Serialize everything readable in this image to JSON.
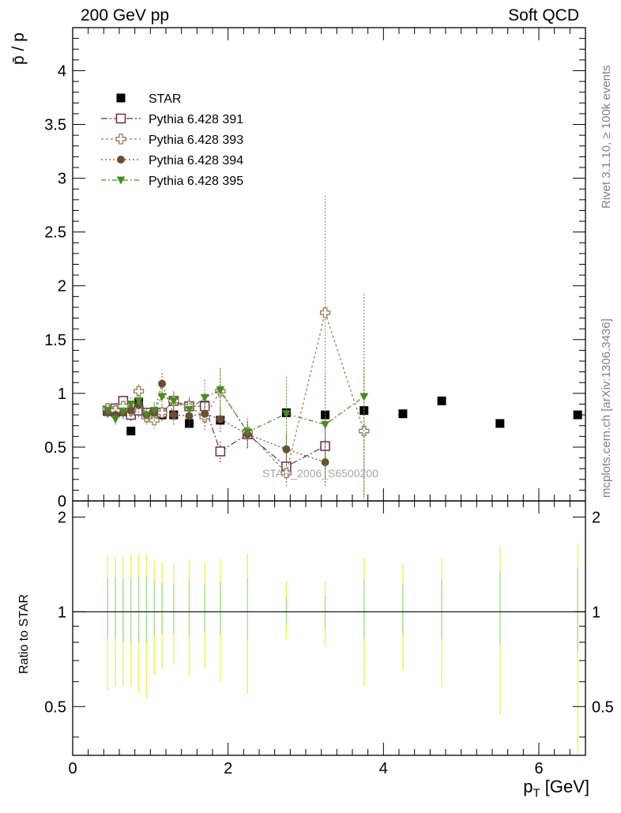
{
  "header": {
    "left_label": "200 GeV pp",
    "right_label": "Soft QCD"
  },
  "side_text": {
    "rivet": "Rivet 3.1.10, ≥ 100k events",
    "mcplots": "mcplots.cern.ch [arXiv:1306.3436]"
  },
  "chart_data": {
    "type": "scatter",
    "analysis_label": "STAR_2006_S6500200",
    "xlabel": "p_T [GeV]",
    "ylabel": "p̄ / p",
    "ratio_ylabel": "Ratio to STAR",
    "xlim": [
      0,
      6.6
    ],
    "ylim": [
      0,
      4.4
    ],
    "ratio_ylim": [
      0.35,
      2.25
    ],
    "x_ticks": [
      "0",
      "2",
      "4",
      "6"
    ],
    "y_ticks": [
      "0",
      "0.5",
      "1",
      "1.5",
      "2",
      "2.5",
      "3",
      "3.5",
      "4"
    ],
    "ratio_ticks": [
      "0.5",
      "1",
      "2"
    ],
    "legend_position": "top-left",
    "colors": {
      "star": "#000000",
      "p391": "#6b2c4d",
      "p393": "#8e7d56",
      "p394": "#6b4d33",
      "p395": "#4a8a22",
      "band_yellow": "#f2f25a",
      "band_green": "#a6e39a",
      "analysis_label": "#a6a6a6",
      "side_text": "#808080"
    },
    "series": [
      {
        "name": "STAR",
        "marker": "filled-square",
        "x": [
          0.45,
          0.55,
          0.65,
          0.75,
          0.85,
          0.95,
          1.05,
          1.15,
          1.3,
          1.5,
          1.7,
          1.9,
          2.25,
          2.75,
          3.25,
          3.75,
          4.25,
          4.75,
          5.5,
          6.5
        ],
        "y": [
          0.83,
          0.82,
          0.83,
          0.65,
          0.92,
          0.8,
          0.8,
          0.8,
          0.8,
          0.72,
          0.89,
          0.75,
          0.62,
          0.82,
          0.8,
          0.84,
          0.81,
          0.93,
          0.72,
          0.8
        ]
      },
      {
        "name": "Pythia 6.428 391",
        "marker": "open-square",
        "x": [
          0.45,
          0.55,
          0.65,
          0.75,
          0.85,
          0.95,
          1.05,
          1.15,
          1.3,
          1.5,
          1.7,
          1.9,
          2.25,
          2.75,
          3.25
        ],
        "y": [
          0.84,
          0.86,
          0.93,
          0.8,
          0.84,
          0.82,
          0.8,
          0.82,
          0.93,
          0.88,
          0.88,
          0.46,
          0.62,
          0.32,
          0.51
        ],
        "err": [
          0.05,
          0.05,
          0.06,
          0.06,
          0.06,
          0.06,
          0.07,
          0.07,
          0.08,
          0.09,
          0.1,
          0.1,
          0.12,
          0.15,
          0.2
        ]
      },
      {
        "name": "Pythia 6.428 393",
        "marker": "open-cross",
        "x": [
          0.45,
          0.55,
          0.65,
          0.75,
          0.85,
          0.95,
          1.05,
          1.15,
          1.3,
          1.5,
          1.7,
          1.9,
          2.25,
          2.75,
          3.25,
          3.75
        ],
        "y": [
          0.86,
          0.84,
          0.88,
          0.84,
          1.02,
          0.78,
          0.75,
          0.82,
          0.93,
          0.88,
          0.78,
          1.02,
          0.64,
          0.26,
          1.75,
          0.65
        ],
        "err": [
          0.05,
          0.05,
          0.06,
          0.06,
          0.07,
          0.07,
          0.08,
          0.08,
          0.09,
          0.1,
          0.12,
          0.22,
          0.15,
          0.12,
          1.1,
          0.6
        ]
      },
      {
        "name": "Pythia 6.428 394",
        "marker": "filled-circle",
        "x": [
          0.45,
          0.55,
          0.65,
          0.75,
          0.85,
          0.95,
          1.05,
          1.15,
          1.3,
          1.5,
          1.7,
          1.9,
          2.25,
          2.75,
          3.25
        ],
        "y": [
          0.82,
          0.8,
          0.82,
          0.84,
          0.89,
          0.8,
          0.82,
          1.09,
          0.8,
          0.79,
          0.81,
          0.76,
          0.62,
          0.48,
          0.36
        ],
        "err": [
          0.05,
          0.05,
          0.06,
          0.06,
          0.07,
          0.07,
          0.08,
          0.12,
          0.09,
          0.1,
          0.12,
          0.12,
          0.13,
          0.15,
          0.22
        ]
      },
      {
        "name": "Pythia 6.428 395",
        "marker": "filled-triangle-down",
        "x": [
          0.45,
          0.55,
          0.65,
          0.75,
          0.85,
          0.95,
          1.05,
          1.15,
          1.3,
          1.5,
          1.7,
          1.9,
          2.25,
          2.75,
          3.25,
          3.75
        ],
        "y": [
          0.84,
          0.76,
          0.83,
          0.9,
          0.93,
          0.8,
          0.84,
          0.97,
          0.93,
          0.85,
          0.96,
          1.03,
          0.64,
          0.81,
          0.71,
          0.97
        ],
        "err": [
          0.05,
          0.05,
          0.06,
          0.07,
          0.07,
          0.07,
          0.08,
          0.08,
          0.09,
          0.1,
          0.17,
          0.22,
          0.12,
          0.35,
          0.5,
          0.97
        ]
      }
    ],
    "ratio_bands": {
      "x": [
        0.45,
        0.55,
        0.65,
        0.75,
        0.85,
        0.95,
        1.05,
        1.15,
        1.3,
        1.5,
        1.7,
        1.9,
        2.25,
        2.75,
        3.25,
        3.75,
        4.25,
        4.75,
        5.5,
        6.5
      ],
      "yellow_lo": [
        0.56,
        0.58,
        0.58,
        0.58,
        0.55,
        0.53,
        0.63,
        0.66,
        0.68,
        0.62,
        0.66,
        0.6,
        0.55,
        0.82,
        0.78,
        0.58,
        0.65,
        0.58,
        0.47,
        0.35
      ],
      "yellow_hi": [
        1.5,
        1.5,
        1.5,
        1.52,
        1.53,
        1.52,
        1.45,
        1.44,
        1.43,
        1.47,
        1.43,
        1.47,
        1.53,
        1.25,
        1.25,
        1.48,
        1.42,
        1.48,
        1.6,
        1.65
      ],
      "green_lo": [
        0.82,
        0.82,
        0.8,
        0.8,
        0.8,
        0.8,
        0.84,
        0.85,
        0.85,
        0.84,
        0.86,
        0.84,
        0.82,
        0.92,
        0.9,
        0.82,
        0.84,
        0.82,
        0.79,
        0.75
      ],
      "green_hi": [
        1.28,
        1.28,
        1.28,
        1.28,
        1.3,
        1.29,
        1.25,
        1.24,
        1.23,
        1.25,
        1.23,
        1.25,
        1.28,
        1.12,
        1.12,
        1.26,
        1.22,
        1.26,
        1.34,
        1.38
      ]
    }
  }
}
